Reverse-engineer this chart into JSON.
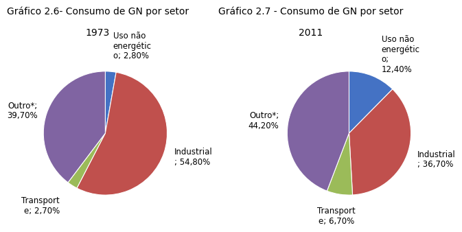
{
  "chart1": {
    "title_line1": "Gráfico 2.6- Consumo de GN por setor",
    "title_line2": "1973",
    "values": [
      2.8,
      54.8,
      2.7,
      39.7
    ],
    "colors": [
      "#4472C4",
      "#C0504D",
      "#9BBB59",
      "#8064A2"
    ],
    "startangle": 90,
    "label_texts": [
      "Uso não\nenergétic\no; 2,80%",
      "Industrial\n; 54,80%",
      "Transport\ne; 2,70%",
      "Outro*;\n39,70%"
    ],
    "label_r": [
      1.42,
      1.18,
      1.38,
      1.15
    ],
    "label_ha": [
      "left",
      "left",
      "right",
      "right"
    ]
  },
  "chart2": {
    "title_line1": "Gráfico 2.7 - Consumo de GN por setor",
    "title_line2": "2011",
    "values": [
      12.4,
      36.7,
      6.7,
      44.2
    ],
    "colors": [
      "#4472C4",
      "#C0504D",
      "#9BBB59",
      "#8064A2"
    ],
    "startangle": 90,
    "label_texts": [
      "Uso não\nenergétic\no;\n12,40%",
      "Industrial\n; 36,70%",
      "Transport\ne; 6,70%",
      "Outro*;\n44,20%"
    ],
    "label_r": [
      1.38,
      1.18,
      1.35,
      1.15
    ],
    "label_ha": [
      "left",
      "left",
      "center",
      "right"
    ]
  },
  "font_size": 8.5,
  "title_fontsize": 10.0,
  "bg_color": "#FFFFFF",
  "box_color": "#CCCCCC"
}
